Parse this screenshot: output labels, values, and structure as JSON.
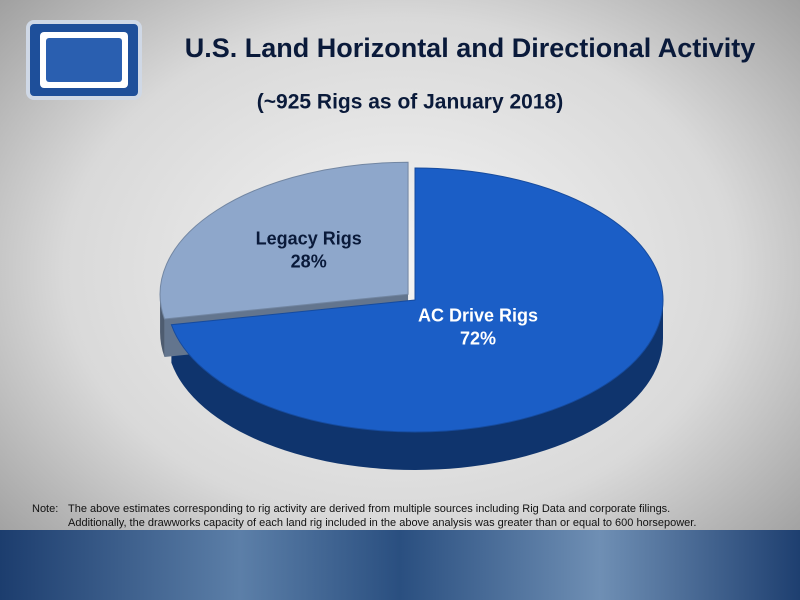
{
  "chart_data": {
    "type": "pie",
    "title": "U.S. Land Horizontal and Directional Activity",
    "subtitle": "(~925 Rigs as of January 2018)",
    "categories": [
      "AC Drive Rigs",
      "Legacy Rigs"
    ],
    "values": [
      72,
      28
    ],
    "value_labels": [
      "72%",
      "28%"
    ],
    "colors": [
      "#1b5ec6",
      "#8ea7cb"
    ],
    "label_colors": [
      "#ffffff",
      "#0a1a3a"
    ],
    "note_label": "Note:",
    "note": [
      "The above estimates corresponding to rig activity are derived from multiple sources including Rig Data and corporate filings.",
      "Additionally, the drawworks capacity of each land rig included in the above analysis was greater than or equal to 600 horsepower."
    ]
  }
}
